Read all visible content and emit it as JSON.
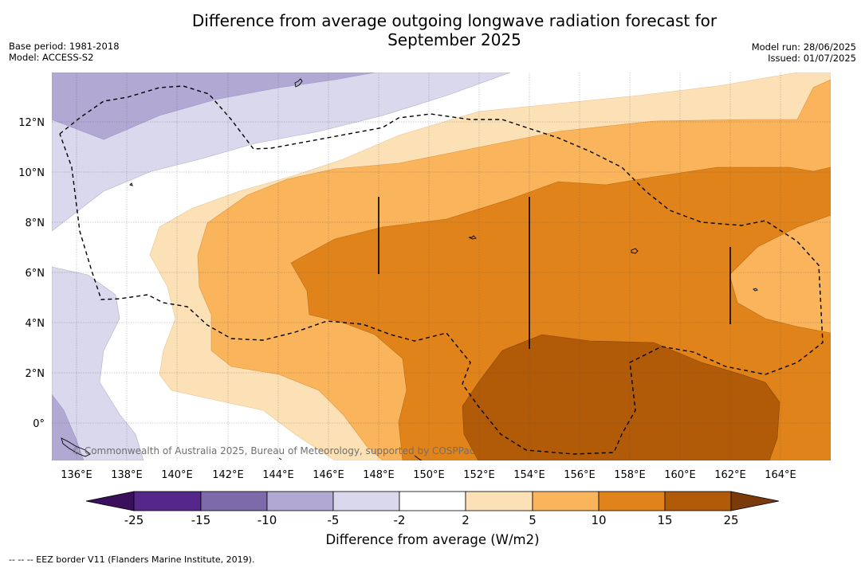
{
  "title_line1": "Difference from average outgoing longwave radiation forecast for",
  "title_line2": "September 2025",
  "meta": {
    "base_period": "Base period: 1981-2018",
    "model": "Model: ACCESS-S2",
    "model_run": "Model run: 28/06/2025",
    "issued": "Issued: 01/07/2025"
  },
  "map": {
    "lon_range": [
      135,
      166
    ],
    "lat_range": [
      -1.5,
      14
    ],
    "lon_ticks": [
      "136°E",
      "138°E",
      "140°E",
      "142°E",
      "144°E",
      "146°E",
      "148°E",
      "150°E",
      "152°E",
      "154°E",
      "156°E",
      "158°E",
      "160°E",
      "162°E",
      "164°E"
    ],
    "lat_ticks": [
      "12°N",
      "10°N",
      "8°N",
      "6°N",
      "4°N",
      "2°N",
      "0°"
    ],
    "copyright": "© Commonwealth of Australia 2025, Bureau of Meteorology, supported by COSPPac"
  },
  "colorbar": {
    "title": "Difference from average (W/m2)",
    "labels": [
      "-25",
      "-15",
      "-10",
      "-5",
      "-2",
      "2",
      "5",
      "10",
      "15",
      "25"
    ],
    "colors": [
      "#3a0f5c",
      "#55278a",
      "#7c6aab",
      "#b1a9d3",
      "#d9d8ec",
      "#ffffff",
      "#fde1b6",
      "#f9b45c",
      "#e0831a",
      "#b15a07",
      "#7a3a0a"
    ]
  },
  "footnote": "--  --  -- EEZ border V11 (Flanders Marine Institute, 2019)."
}
